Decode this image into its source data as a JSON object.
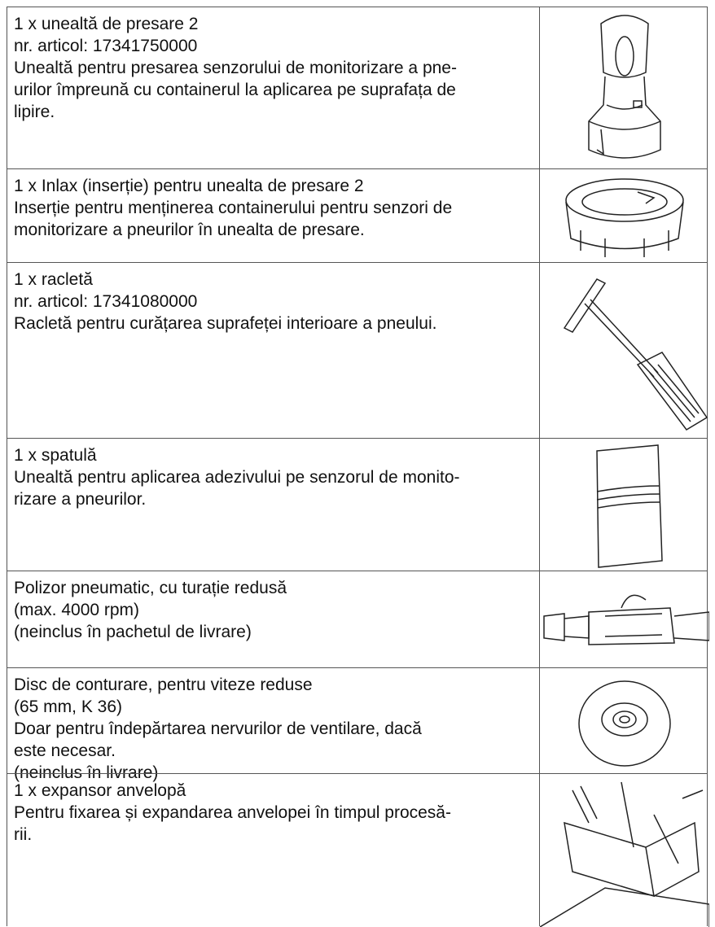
{
  "table": {
    "rows": [
      {
        "lines": [
          "1 x unealtă de presare 2",
          "nr. articol: 17341750000",
          "Unealtă pentru presarea senzorului de monitorizare a pne-",
          "urilor împreună cu containerul la aplicarea pe suprafața de",
          "lipire."
        ]
      },
      {
        "lines": [
          "1 x Inlax (inserție) pentru unealta de presare 2",
          "Inserție pentru menținerea containerului pentru senzori de",
          "monitorizare a pneurilor în unealta de presare."
        ]
      },
      {
        "lines": [
          "1 x racletă",
          "nr. articol: 17341080000",
          "Racletă pentru curățarea suprafeței interioare a pneului."
        ]
      },
      {
        "lines": [
          "1 x spatulă",
          "Unealtă pentru aplicarea adezivului pe senzorul de monito-",
          "rizare a pneurilor."
        ]
      },
      {
        "lines": [
          "Polizor pneumatic, cu turație redusă",
          "(max. 4000 rpm)",
          "(neinclus în pachetul de livrare)"
        ]
      },
      {
        "lines": [
          "Disc de conturare, pentru viteze reduse",
          "(65 mm, K 36)",
          "Doar pentru îndepărtarea nervurilor de ventilare, dacă",
          "este necesar.",
          "(neinclus în livrare)"
        ]
      },
      {
        "lines": [
          "1 x expansor anvelopă",
          "Pentru fixarea și expandarea anvelopei în timpul procesă-",
          "rii."
        ]
      }
    ]
  }
}
